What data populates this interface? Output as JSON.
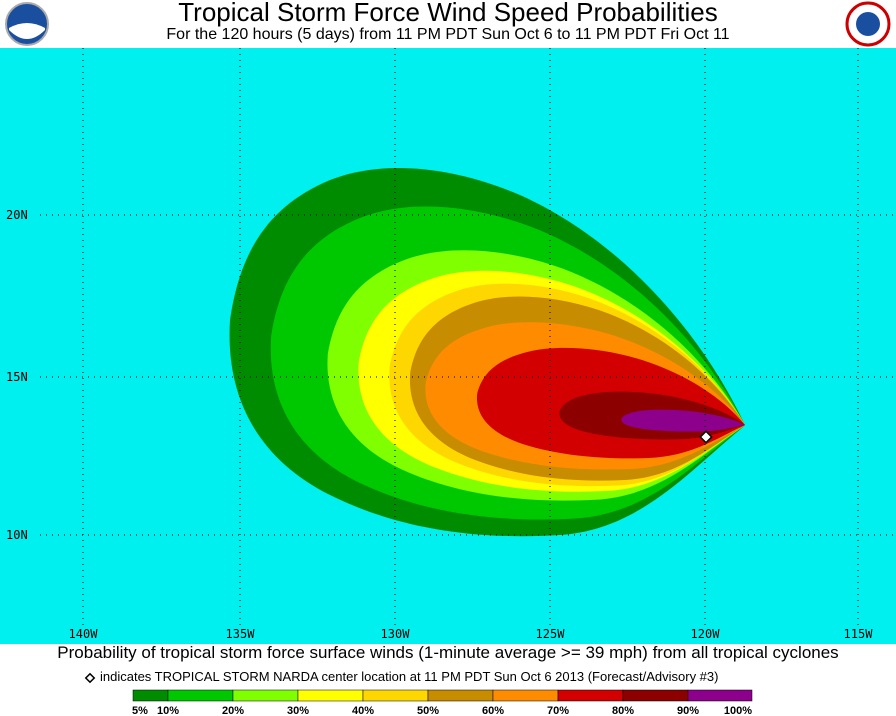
{
  "header": {
    "title": "Tropical Storm Force Wind Speed Probabilities",
    "subtitle": "For the 120 hours (5 days) from 11 PM PDT Sun Oct 6 to 11 PM PDT Fri Oct 11"
  },
  "map": {
    "lat_labels": [
      "20N",
      "15N",
      "10N"
    ],
    "lon_labels": [
      "140W",
      "135W",
      "130W",
      "125W",
      "120W",
      "115W"
    ]
  },
  "footer": {
    "caption": "Probability of tropical storm force surface winds (1-minute average >= 39 mph) from all tropical cyclones",
    "note": "indicates TROPICAL STORM NARDA center location at 11 PM PDT Sun Oct 6 2013 (Forecast/Advisory #3)"
  },
  "legend": {
    "labels": [
      "5%",
      "10%",
      "20%",
      "30%",
      "40%",
      "50%",
      "60%",
      "70%",
      "80%",
      "90%",
      "100%"
    ],
    "colors": [
      "#008c00",
      "#00c800",
      "#80ff00",
      "#ffff00",
      "#ffd700",
      "#c88c00",
      "#ff8c00",
      "#d20000",
      "#8c0000",
      "#8c008c"
    ]
  }
}
